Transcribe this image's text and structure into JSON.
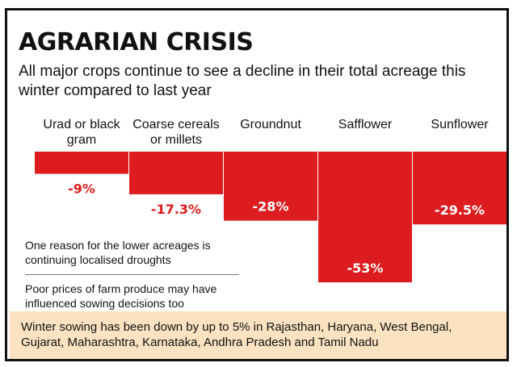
{
  "title": "AGRARIAN CRISIS",
  "subtitle": "All major crops continue to see a decline in their total acreage this winter compared to last year",
  "notes": [
    "One reason for the lower acreages is continuing localised droughts",
    "Poor prices of farm produce may have influenced sowing decisions too"
  ],
  "footer": "Winter sowing has been down by up to 5% in Rajasthan, Haryana, West Bengal, Gujarat, Maharashtra, Karnataka, Andhra Pradesh and Tamil Nadu",
  "colors": {
    "bar": "#dc1c1e",
    "bar_label_dark": "#dc1c1e",
    "bar_label_light": "#ffffff",
    "footer_bg": "#fbe3c2"
  },
  "chart_data": {
    "type": "bar",
    "categories": [
      "Urad or black gram",
      "Coarse cereals or millets",
      "Groundnut",
      "Safflower",
      "Sunflower"
    ],
    "category_lines": [
      [
        "Urad or black",
        "gram"
      ],
      [
        "Coarse cereals",
        "or millets"
      ],
      [
        "Groundnut"
      ],
      [
        "Safflower"
      ],
      [
        "Sunflower"
      ]
    ],
    "values": [
      -9,
      -17.3,
      -28,
      -53,
      -29.5
    ],
    "value_labels": [
      "-9%",
      "-17.3%",
      "-28%",
      "-53%",
      "-29.5%"
    ],
    "unit": "%",
    "ylim": [
      -53,
      0
    ],
    "grid": false,
    "legend": "none"
  }
}
